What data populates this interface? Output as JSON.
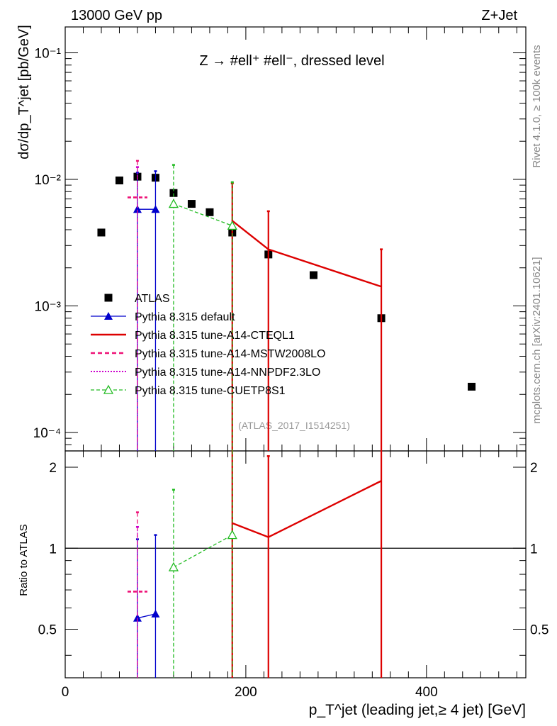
{
  "header": {
    "energy": "13000 GeV pp",
    "process": "Z+Jet"
  },
  "side_labels": {
    "rivet": "Rivet 4.1.0, ≥ 100k events",
    "mcplots": "mcplots.cern.ch [arXiv:2401.10621]"
  },
  "chart_data": [
    {
      "type": "scatter",
      "title": "Z → #ell⁺ #ell⁻, dressed level",
      "ylabel": "dσ/dp_T^jet [pb/GeV]",
      "xlabel": "p_T^jet (leading jet,≥ 4 jet) [GeV]",
      "xlim": [
        0,
        510
      ],
      "ylim": [
        7.15e-05,
        0.16
      ],
      "yscale": "log",
      "analysis": "(ATLAS_2017_I1514251)",
      "xticks": [
        0,
        200,
        400
      ],
      "xtick_labels": [
        "0",
        "200",
        "400"
      ],
      "yticks": [
        0.0001,
        0.001,
        0.01,
        0.1
      ],
      "ytick_labels": [
        "10⁻⁴",
        "10⁻³",
        "10⁻²",
        "10⁻¹"
      ],
      "series": [
        {
          "name": "ATLAS",
          "style": "data",
          "color": "#000000",
          "x": [
            40,
            60,
            80,
            100,
            120,
            140,
            160,
            185,
            225,
            275,
            350,
            450
          ],
          "y": [
            0.0038,
            0.0098,
            0.0105,
            0.0103,
            0.0078,
            0.0064,
            0.0055,
            0.0038,
            0.00255,
            0.00175,
            0.0008,
            0.00023
          ]
        },
        {
          "name": "Pythia 8.315 default",
          "style": "default",
          "color": "#0000cc",
          "x": [
            80,
            100
          ],
          "y": [
            0.0058,
            0.0058
          ],
          "err_lo": [
            1e-05,
            1e-05
          ],
          "err_hi": [
            0.0113,
            0.0116
          ]
        },
        {
          "name": "Pythia 8.315 tune-A14-CTEQL1",
          "style": "cteq",
          "color": "#dd0000",
          "x": [
            185,
            225,
            350
          ],
          "y": [
            0.0047,
            0.0028,
            0.00142
          ],
          "err_lo": [
            1e-05,
            1e-05,
            1e-05
          ],
          "err_hi": [
            0.0093,
            0.0056,
            0.0028
          ]
        },
        {
          "name": "Pythia 8.315 tune-A14-MSTW2008LO",
          "style": "mstw",
          "color": "#ee1177",
          "x": [
            80
          ],
          "y": [
            0.0072
          ],
          "err_lo": [
            1e-05
          ],
          "err_hi": [
            0.014
          ]
        },
        {
          "name": "Pythia 8.315 tune-A14-NNPDF2.3LO",
          "style": "nnpdf",
          "color": "#cc00cc",
          "x": [
            80
          ],
          "y": [
            0.0072
          ],
          "err_lo": [
            1e-05
          ],
          "err_hi": [
            0.0125
          ]
        },
        {
          "name": "Pythia 8.315 tune-CUETP8S1",
          "style": "cuetp",
          "color": "#22bb22",
          "x": [
            120,
            185
          ],
          "y": [
            0.0064,
            0.0043
          ],
          "err_lo": [
            1e-05,
            1e-05
          ],
          "err_hi": [
            0.013,
            0.0095
          ]
        }
      ]
    },
    {
      "type": "scatter",
      "ylabel": "Ratio to ATLAS",
      "ylim": [
        0.33,
        2.3
      ],
      "yscale": "log",
      "yticks": [
        0.5,
        1,
        2
      ],
      "ytick_labels": [
        "0.5",
        "1",
        "2"
      ],
      "reference": 1,
      "series": [
        {
          "name": "Pythia 8.315 default",
          "style": "default",
          "color": "#0000cc",
          "x": [
            80,
            100
          ],
          "y": [
            0.55,
            0.57
          ],
          "err_lo": [
            0.0001,
            0.0001
          ],
          "err_hi": [
            1.08,
            1.12
          ]
        },
        {
          "name": "Pythia 8.315 tune-A14-CTEQL1",
          "style": "cteq",
          "color": "#dd0000",
          "x": [
            185,
            225,
            350
          ],
          "y": [
            1.24,
            1.1,
            1.78
          ],
          "err_lo": [
            0.0001,
            0.0001,
            0.0001
          ],
          "err_hi": [
            2.45,
            2.2,
            3.5
          ]
        },
        {
          "name": "Pythia 8.315 tune-A14-MSTW2008LO",
          "style": "mstw",
          "color": "#ee1177",
          "x": [
            80
          ],
          "y": [
            0.69
          ],
          "err_lo": [
            0.0001
          ],
          "err_hi": [
            1.36
          ]
        },
        {
          "name": "Pythia 8.315 tune-A14-NNPDF2.3LO",
          "style": "nnpdf",
          "color": "#cc00cc",
          "x": [
            80
          ],
          "y": [
            0.69
          ],
          "err_lo": [
            0.0001
          ],
          "err_hi": [
            1.2
          ]
        },
        {
          "name": "Pythia 8.315 tune-CUETP8S1",
          "style": "cuetp",
          "color": "#22bb22",
          "x": [
            120,
            185
          ],
          "y": [
            0.85,
            1.12
          ],
          "err_lo": [
            0.0001,
            0.0001
          ],
          "err_hi": [
            1.65,
            2.45
          ]
        }
      ]
    }
  ]
}
